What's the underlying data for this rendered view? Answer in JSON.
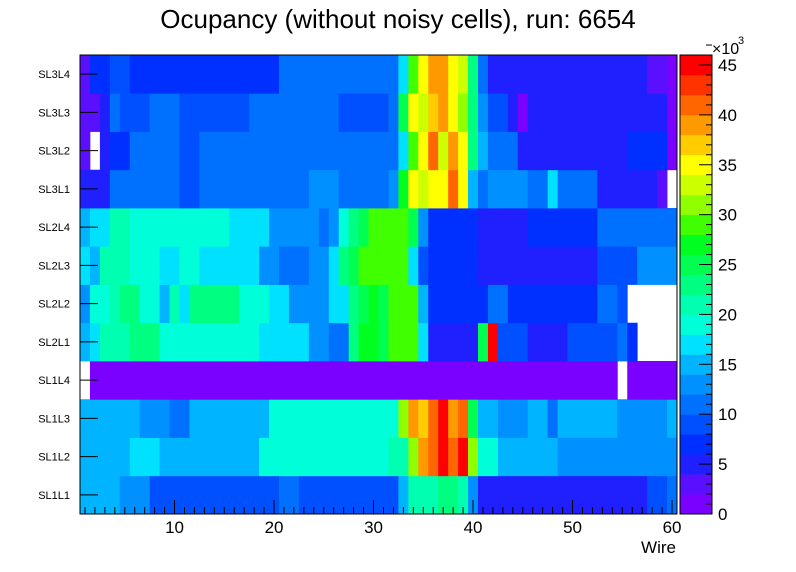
{
  "chart_data": {
    "type": "heatmap",
    "title": "Ocupancy (without noisy cells), run: 6654",
    "xlabel": "Wire",
    "ylabel": "",
    "xlim": [
      0.5,
      60.5
    ],
    "x_ticks": [
      10,
      20,
      30,
      40,
      50,
      60
    ],
    "y_categories": [
      "SL1L1",
      "SL1L2",
      "SL1L3",
      "SL1L4",
      "SL2L1",
      "SL2L2",
      "SL2L3",
      "SL2L4",
      "SL3L1",
      "SL3L2",
      "SL3L3",
      "SL3L4"
    ],
    "z_range": [
      0,
      48000
    ],
    "z_exponent_label": "×10",
    "z_exponent": "3",
    "z_ticks": [
      "0",
      "5",
      "10",
      "15",
      "20",
      "25",
      "30",
      "35",
      "40",
      "45"
    ],
    "z_tick_values": [
      0,
      5,
      10,
      15,
      20,
      25,
      30,
      35,
      40,
      45
    ],
    "palette": [
      "#7a00ff",
      "#5a10ff",
      "#2020ff",
      "#0030ff",
      "#0050ff",
      "#0070ff",
      "#0090ff",
      "#00b4ff",
      "#00e0ff",
      "#00ffd8",
      "#00ffb0",
      "#00ff80",
      "#00ff50",
      "#00ff20",
      "#40ff00",
      "#90ff00",
      "#ccff00",
      "#ffff00",
      "#ffcc00",
      "#ff9900",
      "#ff6600",
      "#ff3300",
      "#ff0000"
    ],
    "rows": [
      {
        "layer": "SL1L1",
        "segments": [
          [
            1,
            2,
            16
          ],
          [
            3,
            4,
            16
          ],
          [
            5,
            7,
            13
          ],
          [
            8,
            20,
            9
          ],
          [
            21,
            22,
            12
          ],
          [
            23,
            32,
            9
          ],
          [
            33,
            33,
            16
          ],
          [
            34,
            36,
            21
          ],
          [
            37,
            38,
            23
          ],
          [
            39,
            39,
            21
          ],
          [
            40,
            40,
            14
          ],
          [
            41,
            57,
            6
          ],
          [
            58,
            59,
            9
          ],
          [
            60,
            60,
            12
          ]
        ]
      },
      {
        "layer": "SL1L2",
        "segments": [
          [
            1,
            5,
            16
          ],
          [
            6,
            8,
            18
          ],
          [
            9,
            10,
            16
          ],
          [
            11,
            18,
            16
          ],
          [
            19,
            31,
            19
          ],
          [
            32,
            33,
            21
          ],
          [
            34,
            34,
            33
          ],
          [
            35,
            35,
            40
          ],
          [
            36,
            36,
            43
          ],
          [
            37,
            37,
            46
          ],
          [
            38,
            38,
            43
          ],
          [
            39,
            39,
            46
          ],
          [
            40,
            40,
            33
          ],
          [
            41,
            42,
            20
          ],
          [
            43,
            48,
            16
          ],
          [
            49,
            60,
            13
          ]
        ]
      },
      {
        "layer": "SL1L3",
        "segments": [
          [
            1,
            2,
            16
          ],
          [
            3,
            6,
            15
          ],
          [
            7,
            9,
            14
          ],
          [
            10,
            11,
            12
          ],
          [
            12,
            19,
            16
          ],
          [
            20,
            32,
            19
          ],
          [
            33,
            33,
            32
          ],
          [
            34,
            34,
            41
          ],
          [
            35,
            35,
            38
          ],
          [
            36,
            36,
            43
          ],
          [
            37,
            37,
            46
          ],
          [
            38,
            38,
            41
          ],
          [
            39,
            39,
            43
          ],
          [
            40,
            40,
            27
          ],
          [
            41,
            42,
            16
          ],
          [
            43,
            45,
            13
          ],
          [
            46,
            47,
            16
          ],
          [
            48,
            48,
            12
          ],
          [
            49,
            54,
            16
          ],
          [
            55,
            59,
            13
          ],
          [
            60,
            60,
            16
          ]
        ]
      },
      {
        "layer": "SL1L4",
        "segments": [
          [
            2,
            54,
            2
          ],
          [
            56,
            60,
            2
          ]
        ]
      },
      {
        "layer": "SL2L1",
        "segments": [
          [
            1,
            1,
            15
          ],
          [
            2,
            2,
            17
          ],
          [
            3,
            5,
            22
          ],
          [
            6,
            8,
            23
          ],
          [
            9,
            9,
            20
          ],
          [
            10,
            15,
            19
          ],
          [
            16,
            18,
            20
          ],
          [
            19,
            23,
            17
          ],
          [
            24,
            25,
            14
          ],
          [
            26,
            27,
            12
          ],
          [
            28,
            28,
            24
          ],
          [
            29,
            30,
            28
          ],
          [
            31,
            31,
            26
          ],
          [
            32,
            34,
            30
          ],
          [
            35,
            35,
            17
          ],
          [
            36,
            40,
            6
          ],
          [
            41,
            41,
            26
          ],
          [
            42,
            42,
            48
          ],
          [
            43,
            45,
            10
          ],
          [
            46,
            49,
            6
          ],
          [
            50,
            54,
            9
          ],
          [
            55,
            55,
            11
          ],
          [
            56,
            56,
            8
          ]
        ]
      },
      {
        "layer": "SL2L2",
        "segments": [
          [
            1,
            1,
            14
          ],
          [
            2,
            2,
            19
          ],
          [
            3,
            3,
            20
          ],
          [
            4,
            4,
            22
          ],
          [
            5,
            6,
            23
          ],
          [
            7,
            8,
            20
          ],
          [
            9,
            9,
            16
          ],
          [
            10,
            10,
            21
          ],
          [
            11,
            11,
            18
          ],
          [
            12,
            16,
            23
          ],
          [
            17,
            19,
            20
          ],
          [
            20,
            21,
            18
          ],
          [
            22,
            25,
            13
          ],
          [
            26,
            26,
            17
          ],
          [
            27,
            27,
            18
          ],
          [
            28,
            28,
            25
          ],
          [
            29,
            29,
            26
          ],
          [
            30,
            30,
            29
          ],
          [
            31,
            31,
            27
          ],
          [
            32,
            34,
            30
          ],
          [
            35,
            35,
            15
          ],
          [
            36,
            41,
            7
          ],
          [
            42,
            43,
            11
          ],
          [
            44,
            52,
            7
          ],
          [
            53,
            54,
            12
          ],
          [
            55,
            55,
            10
          ]
        ]
      },
      {
        "layer": "SL2L3",
        "segments": [
          [
            1,
            1,
            17
          ],
          [
            2,
            2,
            16
          ],
          [
            3,
            5,
            21
          ],
          [
            6,
            8,
            19
          ],
          [
            9,
            10,
            17
          ],
          [
            11,
            12,
            20
          ],
          [
            13,
            18,
            17
          ],
          [
            19,
            20,
            14
          ],
          [
            21,
            23,
            12
          ],
          [
            24,
            25,
            14
          ],
          [
            26,
            26,
            17
          ],
          [
            27,
            27,
            25
          ],
          [
            28,
            28,
            27
          ],
          [
            29,
            33,
            30
          ],
          [
            34,
            34,
            18
          ],
          [
            35,
            35,
            10
          ],
          [
            36,
            40,
            7
          ],
          [
            41,
            52,
            6
          ],
          [
            53,
            56,
            10
          ],
          [
            57,
            60,
            13
          ]
        ]
      },
      {
        "layer": "SL2L4",
        "segments": [
          [
            1,
            1,
            16
          ],
          [
            2,
            3,
            18
          ],
          [
            4,
            5,
            21
          ],
          [
            6,
            7,
            19
          ],
          [
            8,
            8,
            20
          ],
          [
            9,
            15,
            19
          ],
          [
            16,
            19,
            17
          ],
          [
            20,
            24,
            14
          ],
          [
            25,
            25,
            12
          ],
          [
            26,
            26,
            13
          ],
          [
            27,
            27,
            19
          ],
          [
            28,
            28,
            25
          ],
          [
            29,
            29,
            27
          ],
          [
            30,
            33,
            30
          ],
          [
            34,
            34,
            26
          ],
          [
            35,
            35,
            14
          ],
          [
            36,
            40,
            7
          ],
          [
            41,
            45,
            5
          ],
          [
            46,
            52,
            7
          ],
          [
            53,
            60,
            11
          ]
        ]
      },
      {
        "layer": "SL3L1",
        "segments": [
          [
            1,
            3,
            5
          ],
          [
            4,
            10,
            11
          ],
          [
            11,
            12,
            9
          ],
          [
            13,
            23,
            11
          ],
          [
            24,
            26,
            13
          ],
          [
            27,
            28,
            11
          ],
          [
            29,
            30,
            12
          ],
          [
            31,
            31,
            11
          ],
          [
            32,
            32,
            13
          ],
          [
            33,
            33,
            28
          ],
          [
            34,
            34,
            36
          ],
          [
            35,
            35,
            34
          ],
          [
            36,
            37,
            37
          ],
          [
            38,
            38,
            42
          ],
          [
            39,
            39,
            36
          ],
          [
            40,
            40,
            15
          ],
          [
            41,
            41,
            11
          ],
          [
            42,
            45,
            13
          ],
          [
            46,
            47,
            12
          ],
          [
            48,
            48,
            17
          ],
          [
            49,
            52,
            12
          ],
          [
            53,
            58,
            6
          ],
          [
            59,
            59,
            4
          ]
        ]
      },
      {
        "layer": "SL3L2",
        "segments": [
          [
            1,
            1,
            4
          ],
          [
            3,
            3,
            6
          ],
          [
            4,
            5,
            8
          ],
          [
            6,
            10,
            11
          ],
          [
            11,
            12,
            9
          ],
          [
            13,
            18,
            11
          ],
          [
            19,
            24,
            12
          ],
          [
            25,
            32,
            11
          ],
          [
            33,
            33,
            18
          ],
          [
            34,
            34,
            31
          ],
          [
            35,
            35,
            37
          ],
          [
            36,
            36,
            42
          ],
          [
            37,
            37,
            35
          ],
          [
            38,
            38,
            41
          ],
          [
            39,
            39,
            37
          ],
          [
            40,
            40,
            23
          ],
          [
            41,
            41,
            15
          ],
          [
            42,
            44,
            11
          ],
          [
            45,
            55,
            6
          ],
          [
            56,
            59,
            7
          ],
          [
            60,
            60,
            2
          ]
        ]
      },
      {
        "layer": "SL3L3",
        "segments": [
          [
            1,
            2,
            4
          ],
          [
            3,
            3,
            6
          ],
          [
            4,
            4,
            11
          ],
          [
            5,
            7,
            9
          ],
          [
            8,
            10,
            11
          ],
          [
            11,
            17,
            9
          ],
          [
            18,
            26,
            11
          ],
          [
            27,
            31,
            10
          ],
          [
            32,
            32,
            11
          ],
          [
            33,
            33,
            27
          ],
          [
            34,
            34,
            37
          ],
          [
            35,
            35,
            34
          ],
          [
            36,
            36,
            38
          ],
          [
            37,
            37,
            40
          ],
          [
            38,
            38,
            37
          ],
          [
            39,
            39,
            32
          ],
          [
            40,
            40,
            24
          ],
          [
            41,
            41,
            13
          ],
          [
            42,
            43,
            9
          ],
          [
            44,
            44,
            6
          ],
          [
            45,
            45,
            2
          ],
          [
            46,
            59,
            6
          ],
          [
            60,
            60,
            2
          ]
        ]
      },
      {
        "layer": "SL3L4",
        "segments": [
          [
            1,
            1,
            4
          ],
          [
            2,
            3,
            7
          ],
          [
            4,
            5,
            9
          ],
          [
            6,
            20,
            8
          ],
          [
            21,
            32,
            11
          ],
          [
            33,
            33,
            18
          ],
          [
            34,
            34,
            30
          ],
          [
            35,
            35,
            36
          ],
          [
            36,
            37,
            41
          ],
          [
            38,
            38,
            37
          ],
          [
            39,
            39,
            34
          ],
          [
            40,
            40,
            23
          ],
          [
            41,
            41,
            12
          ],
          [
            42,
            57,
            6
          ],
          [
            58,
            59,
            4
          ],
          [
            60,
            60,
            2
          ]
        ]
      }
    ]
  }
}
